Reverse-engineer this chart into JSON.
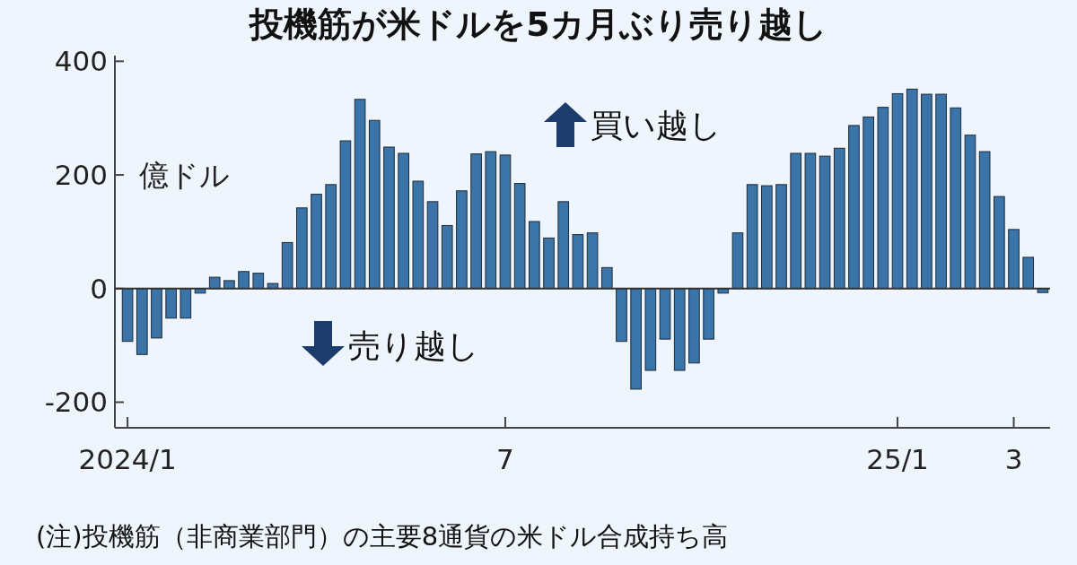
{
  "chart_data": {
    "type": "bar",
    "title": "投機筋が米ドルを5カ月ぶり売り越し",
    "ylabel": "億ドル",
    "categories": [
      "2024/1",
      null,
      null,
      null,
      null,
      null,
      null,
      null,
      null,
      null,
      null,
      null,
      null,
      null,
      null,
      null,
      null,
      null,
      null,
      null,
      null,
      null,
      null,
      null,
      null,
      null,
      "7",
      null,
      null,
      null,
      null,
      null,
      null,
      null,
      null,
      null,
      null,
      null,
      null,
      null,
      null,
      null,
      null,
      null,
      null,
      null,
      null,
      null,
      null,
      null,
      null,
      null,
      null,
      "25/1",
      null,
      null,
      null,
      null,
      null,
      null,
      null,
      "3",
      null,
      null
    ],
    "values": [
      -93,
      -116,
      -87,
      -52,
      -52,
      -8,
      20,
      14,
      30,
      27,
      9,
      81,
      142,
      166,
      183,
      260,
      333,
      296,
      249,
      238,
      189,
      153,
      111,
      172,
      237,
      241,
      235,
      185,
      118,
      89,
      153,
      95,
      98,
      37,
      -93,
      -177,
      -144,
      -89,
      -144,
      -131,
      -89,
      -8,
      98,
      183,
      181,
      183,
      238,
      238,
      233,
      247,
      287,
      302,
      319,
      343,
      351,
      342,
      342,
      318,
      270,
      241,
      162,
      104,
      55,
      -7
    ],
    "color": "#3b74a8",
    "ylim": [
      -245,
      410
    ],
    "yticks": [
      -200,
      0,
      200,
      400
    ],
    "grid": false,
    "ref_lines": [
      {
        "axis": "y",
        "value": 0,
        "color": "#333333"
      }
    ],
    "annotations": [
      "買い越し",
      "売り越し",
      "(注)投機筋（非商業部門）の主要8通貨の米ドル合成持ち高"
    ]
  }
}
